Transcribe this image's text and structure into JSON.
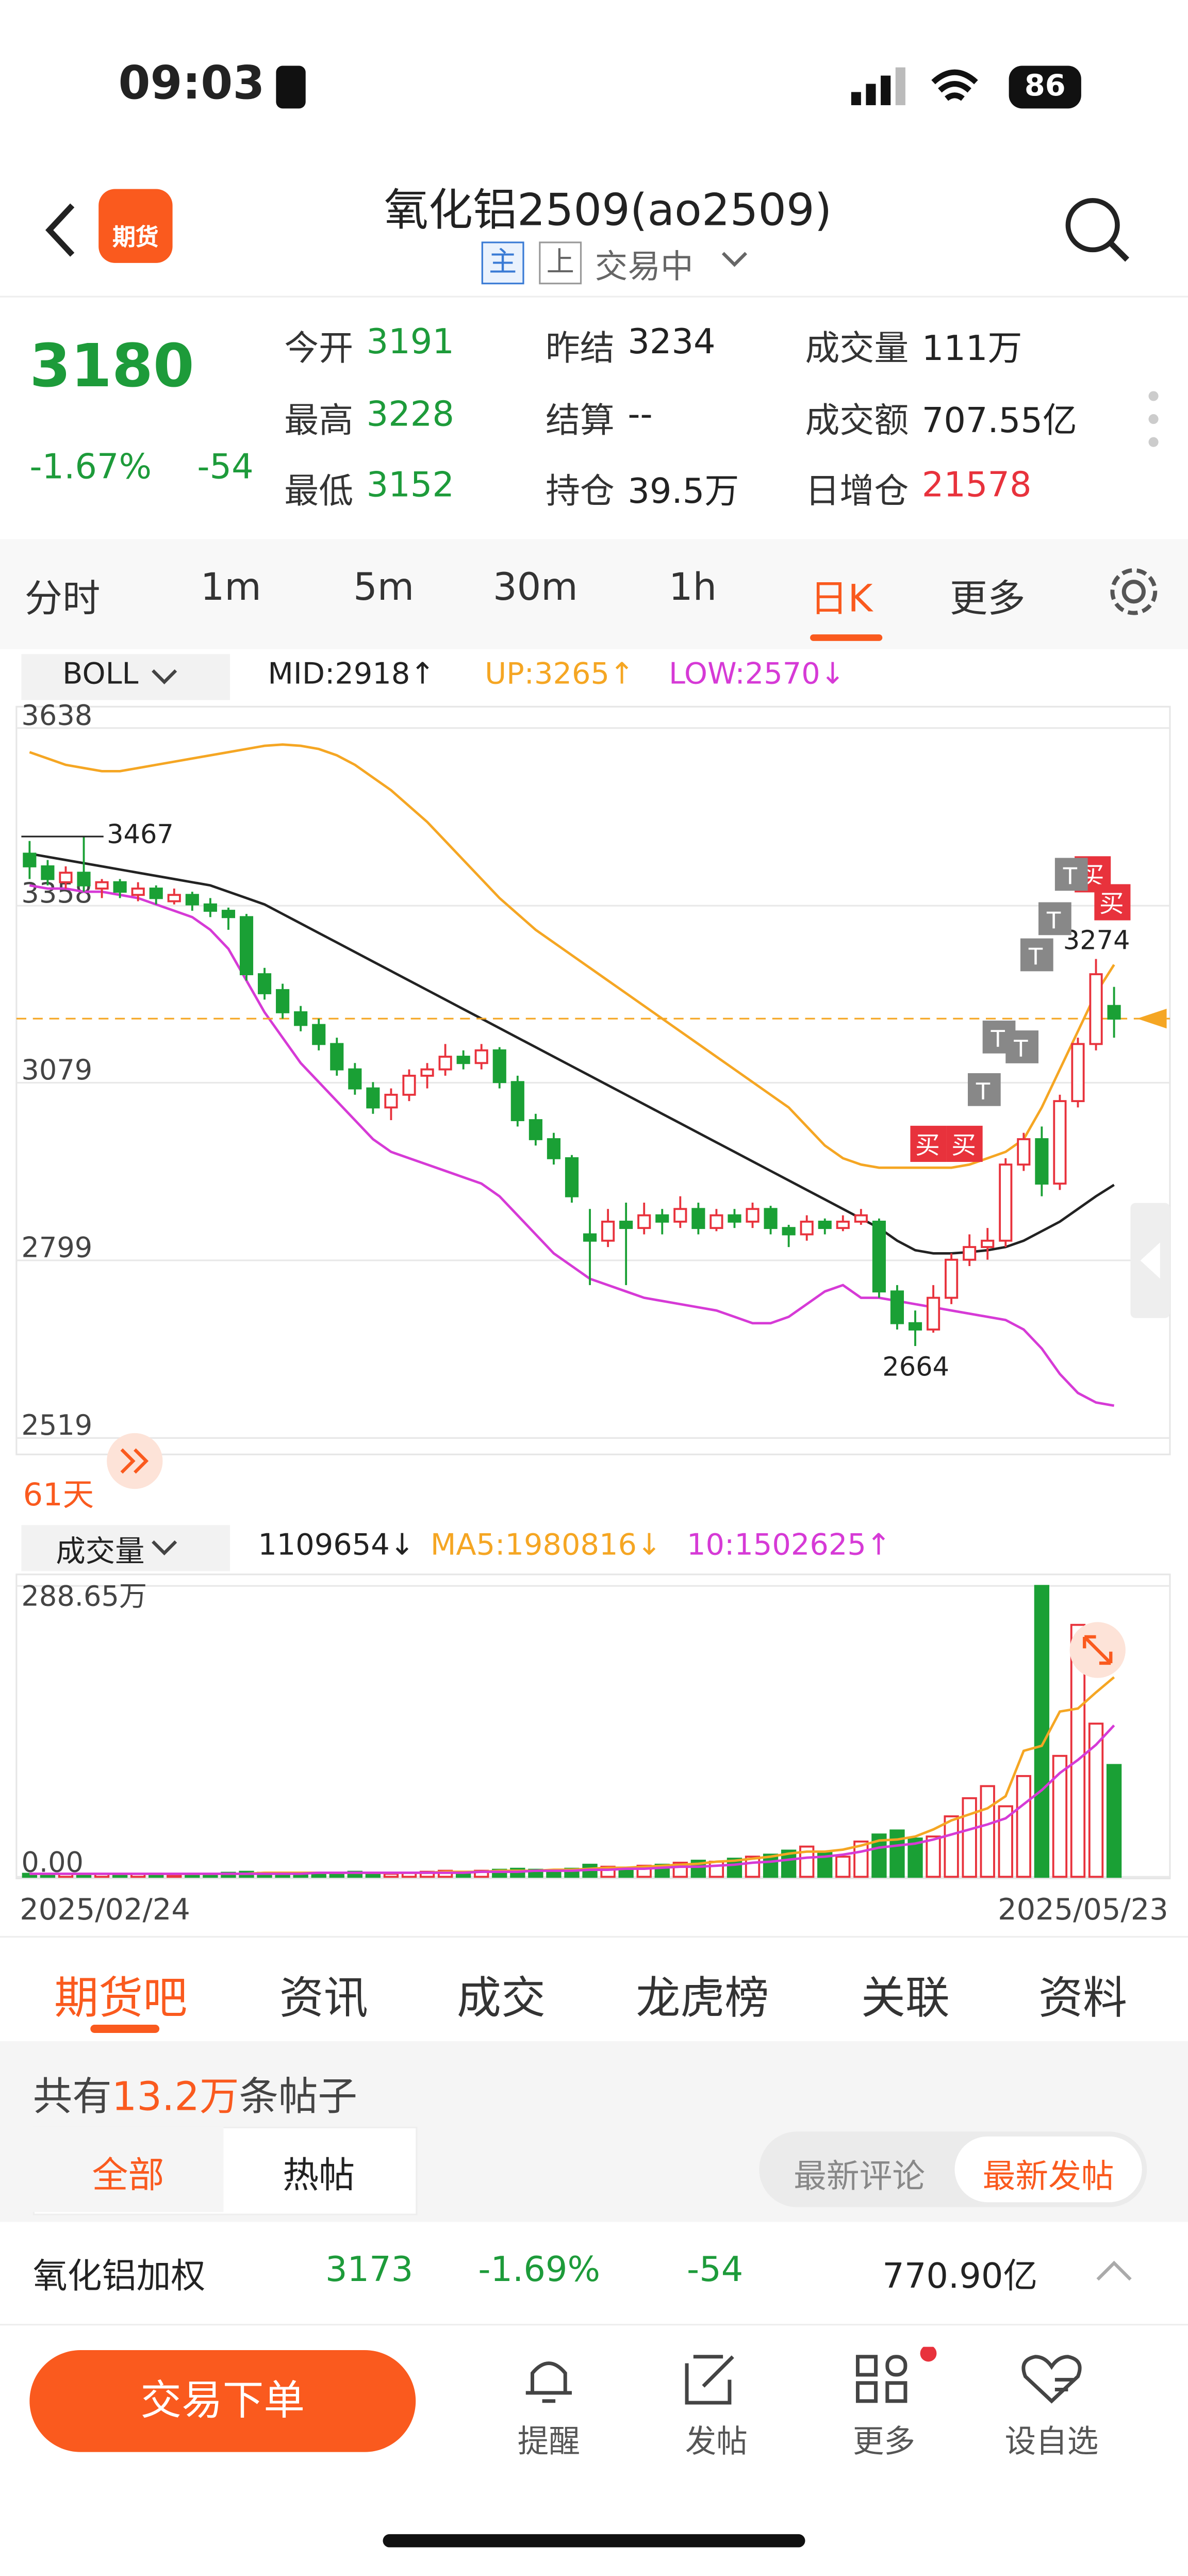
{
  "status": {
    "time": "09:03",
    "battery": "86"
  },
  "header": {
    "logo": "期货",
    "title": "氧化铝2509(ao2509)",
    "badge_main": "主",
    "badge_up": "上",
    "state": "交易中"
  },
  "quote": {
    "price": "3180",
    "change_pct": "-1.67%",
    "change": "-54",
    "fields": [
      {
        "label": "今开",
        "value": "3191",
        "color": "#1d9b3a"
      },
      {
        "label": "昨结",
        "value": "3234",
        "color": "#222222"
      },
      {
        "label": "成交量",
        "value": "111万",
        "color": "#222222"
      },
      {
        "label": "最高",
        "value": "3228",
        "color": "#1d9b3a"
      },
      {
        "label": "结算",
        "value": "--",
        "color": "#222222"
      },
      {
        "label": "成交额",
        "value": "707.55亿",
        "color": "#222222"
      },
      {
        "label": "最低",
        "value": "3152",
        "color": "#1d9b3a"
      },
      {
        "label": "持仓",
        "value": "39.5万",
        "color": "#222222"
      },
      {
        "label": "日增仓",
        "value": "21578",
        "color": "#e8323c"
      }
    ]
  },
  "periods": [
    "分时",
    "1m",
    "5m",
    "30m",
    "1h",
    "日K",
    "更多"
  ],
  "chart_data": [
    {
      "type": "candlestick",
      "indicator": "BOLL",
      "legend": [
        {
          "text": "MID:2918↑",
          "color": "#222222"
        },
        {
          "text": "UP:3265↑",
          "color": "#f5a623"
        },
        {
          "text": "LOW:2570↓",
          "color": "#d63ad6"
        }
      ],
      "ylim": [
        2519,
        3638
      ],
      "yticks": [
        2519,
        2799,
        3079,
        3358,
        3638
      ],
      "grid": true,
      "up_color": "#e8323c",
      "down_color": "#1aa035",
      "candles": [
        [
          3440,
          3460,
          3400,
          3420
        ],
        [
          3420,
          3430,
          3390,
          3400
        ],
        [
          3395,
          3420,
          3385,
          3410
        ],
        [
          3410,
          3467,
          3380,
          3390
        ],
        [
          3385,
          3400,
          3370,
          3395
        ],
        [
          3395,
          3400,
          3370,
          3380
        ],
        [
          3375,
          3395,
          3365,
          3385
        ],
        [
          3385,
          3390,
          3360,
          3370
        ],
        [
          3365,
          3385,
          3360,
          3375
        ],
        [
          3375,
          3380,
          3350,
          3360
        ],
        [
          3360,
          3370,
          3340,
          3350
        ],
        [
          3350,
          3355,
          3320,
          3340
        ],
        [
          3340,
          3345,
          3240,
          3250
        ],
        [
          3250,
          3260,
          3210,
          3220
        ],
        [
          3225,
          3235,
          3180,
          3190
        ],
        [
          3190,
          3200,
          3160,
          3170
        ],
        [
          3170,
          3180,
          3130,
          3140
        ],
        [
          3140,
          3150,
          3090,
          3100
        ],
        [
          3100,
          3110,
          3060,
          3070
        ],
        [
          3070,
          3080,
          3030,
          3040
        ],
        [
          3040,
          3070,
          3020,
          3060
        ],
        [
          3060,
          3100,
          3050,
          3090
        ],
        [
          3090,
          3110,
          3070,
          3100
        ],
        [
          3100,
          3140,
          3090,
          3120
        ],
        [
          3120,
          3130,
          3100,
          3110
        ],
        [
          3110,
          3140,
          3100,
          3130
        ],
        [
          3130,
          3135,
          3070,
          3080
        ],
        [
          3080,
          3090,
          3010,
          3020
        ],
        [
          3020,
          3030,
          2980,
          2990
        ],
        [
          2990,
          3000,
          2950,
          2960
        ],
        [
          2960,
          2965,
          2890,
          2900
        ],
        [
          2840,
          2880,
          2760,
          2830
        ],
        [
          2830,
          2880,
          2820,
          2860
        ],
        [
          2860,
          2890,
          2760,
          2850
        ],
        [
          2850,
          2890,
          2840,
          2870
        ],
        [
          2870,
          2880,
          2840,
          2860
        ],
        [
          2860,
          2900,
          2850,
          2880
        ],
        [
          2880,
          2890,
          2840,
          2850
        ],
        [
          2850,
          2880,
          2845,
          2870
        ],
        [
          2870,
          2880,
          2850,
          2860
        ],
        [
          2860,
          2890,
          2850,
          2880
        ],
        [
          2880,
          2885,
          2840,
          2850
        ],
        [
          2850,
          2855,
          2820,
          2840
        ],
        [
          2840,
          2870,
          2830,
          2860
        ],
        [
          2860,
          2865,
          2840,
          2850
        ],
        [
          2850,
          2870,
          2845,
          2860
        ],
        [
          2860,
          2880,
          2855,
          2870
        ],
        [
          2860,
          2865,
          2740,
          2750
        ],
        [
          2750,
          2760,
          2690,
          2700
        ],
        [
          2700,
          2720,
          2664,
          2690
        ],
        [
          2690,
          2760,
          2685,
          2740
        ],
        [
          2740,
          2810,
          2730,
          2800
        ],
        [
          2800,
          2840,
          2790,
          2820
        ],
        [
          2820,
          2850,
          2800,
          2830
        ],
        [
          2830,
          2960,
          2820,
          2950
        ],
        [
          2950,
          3000,
          2940,
          2990
        ],
        [
          2990,
          3010,
          2900,
          2920
        ],
        [
          2920,
          3060,
          2910,
          3050
        ],
        [
          3050,
          3150,
          3040,
          3140
        ],
        [
          3140,
          3274,
          3130,
          3250
        ],
        [
          3200,
          3230,
          3150,
          3180
        ]
      ],
      "series": [
        {
          "name": "UP",
          "color": "#f5a623",
          "values": [
            3600,
            3590,
            3580,
            3575,
            3570,
            3570,
            3575,
            3580,
            3585,
            3590,
            3595,
            3600,
            3605,
            3610,
            3612,
            3610,
            3605,
            3595,
            3580,
            3560,
            3540,
            3515,
            3490,
            3460,
            3430,
            3400,
            3370,
            3345,
            3320,
            3300,
            3280,
            3260,
            3240,
            3220,
            3200,
            3180,
            3160,
            3140,
            3120,
            3100,
            3080,
            3060,
            3040,
            3010,
            2980,
            2960,
            2950,
            2945,
            2945,
            2945,
            2945,
            2945,
            2950,
            2960,
            2970,
            2990,
            3040,
            3100,
            3160,
            3220,
            3265
          ]
        },
        {
          "name": "MID",
          "color": "#222222",
          "values": [
            3440,
            3435,
            3430,
            3425,
            3420,
            3415,
            3410,
            3405,
            3400,
            3395,
            3390,
            3380,
            3370,
            3360,
            3345,
            3330,
            3315,
            3300,
            3285,
            3270,
            3255,
            3240,
            3225,
            3210,
            3195,
            3180,
            3165,
            3150,
            3135,
            3120,
            3105,
            3090,
            3075,
            3060,
            3045,
            3030,
            3015,
            3000,
            2985,
            2970,
            2955,
            2940,
            2925,
            2910,
            2895,
            2880,
            2865,
            2850,
            2830,
            2815,
            2810,
            2810,
            2812,
            2815,
            2820,
            2830,
            2845,
            2860,
            2880,
            2900,
            2918
          ]
        },
        {
          "name": "LOW",
          "color": "#d63ad6",
          "values": [
            3390,
            3385,
            3385,
            3380,
            3380,
            3375,
            3370,
            3360,
            3350,
            3340,
            3320,
            3290,
            3240,
            3190,
            3150,
            3110,
            3080,
            3050,
            3020,
            2990,
            2970,
            2960,
            2950,
            2940,
            2930,
            2920,
            2900,
            2870,
            2840,
            2810,
            2790,
            2770,
            2760,
            2750,
            2740,
            2735,
            2730,
            2725,
            2720,
            2710,
            2700,
            2700,
            2710,
            2730,
            2750,
            2760,
            2740,
            2740,
            2735,
            2730,
            2725,
            2720,
            2715,
            2710,
            2705,
            2690,
            2660,
            2620,
            2590,
            2575,
            2570
          ]
        }
      ],
      "annotations": [
        {
          "label": "3467",
          "index": 3
        },
        {
          "label": "2664",
          "index": 49
        },
        {
          "label": "3274",
          "index": 59
        }
      ],
      "buy_mark": "买",
      "t_mark": "T",
      "days": "61天"
    },
    {
      "type": "bar",
      "indicator": "成交量",
      "legend": [
        {
          "text": "1109654↓",
          "color": "#222222"
        },
        {
          "text": "MA5:1980816↓",
          "color": "#f5a623"
        },
        {
          "text": "10:1502625↑",
          "color": "#d63ad6"
        }
      ],
      "ylim": [
        0,
        288.65
      ],
      "yticks": [
        {
          "value": 0,
          "label": "0.00"
        },
        {
          "value": 288.65,
          "label": "288.65万"
        }
      ],
      "values": [
        3,
        2,
        3,
        2,
        3,
        2,
        3,
        3,
        2,
        3,
        3,
        4,
        5,
        4,
        3,
        4,
        3,
        4,
        5,
        4,
        3,
        4,
        5,
        6,
        5,
        6,
        7,
        8,
        7,
        6,
        8,
        12,
        10,
        9,
        11,
        12,
        14,
        16,
        15,
        18,
        20,
        22,
        26,
        30,
        24,
        20,
        35,
        42,
        46,
        38,
        40,
        60,
        78,
        90,
        70,
        100,
        288.65,
        120,
        250,
        152,
        110.97
      ],
      "series": [
        {
          "name": "MA5",
          "color": "#f5a623",
          "values": [
            3,
            3,
            3,
            3,
            3,
            3,
            3,
            3,
            3,
            3,
            3,
            3,
            3,
            4,
            4,
            4,
            4,
            4,
            4,
            4,
            4,
            4,
            4,
            5,
            5,
            5,
            6,
            6,
            6,
            7,
            7,
            8,
            9,
            9,
            10,
            11,
            12,
            13,
            15,
            16,
            18,
            20,
            23,
            25,
            25,
            27,
            31,
            36,
            37,
            40,
            47,
            56,
            62,
            68,
            80,
            125,
            130,
            164,
            167,
            183,
            198.08
          ]
        },
        {
          "name": "MA10",
          "color": "#d63ad6",
          "values": [
            3,
            3,
            3,
            3,
            3,
            3,
            3,
            3,
            3,
            3,
            3,
            3,
            3,
            3,
            3,
            3,
            4,
            4,
            4,
            4,
            4,
            4,
            4,
            4,
            4,
            5,
            5,
            5,
            6,
            6,
            6,
            7,
            7,
            8,
            8,
            9,
            10,
            10,
            11,
            12,
            14,
            15,
            17,
            19,
            20,
            22,
            25,
            29,
            31,
            33,
            37,
            42,
            47,
            52,
            58,
            72,
            86,
            103,
            116,
            131,
            150.26
          ]
        }
      ],
      "x_labels": [
        "2025/02/24",
        "2025/05/23"
      ]
    }
  ],
  "tabs": [
    "期货吧",
    "资讯",
    "成交",
    "龙虎榜",
    "关联",
    "资料"
  ],
  "feed": {
    "count_prefix": "共有",
    "count": "13.2万",
    "count_suffix": "条帖子",
    "filters": [
      "全部",
      "热帖"
    ],
    "sort": [
      "最新评论",
      "最新发帖"
    ]
  },
  "ticker": {
    "name": "氧化铝加权",
    "price": "3173",
    "change_pct": "-1.69%",
    "change": "-54",
    "amount": "770.90亿"
  },
  "nav": {
    "order": "交易下单",
    "items": [
      "提醒",
      "发帖",
      "更多",
      "设自选"
    ]
  }
}
